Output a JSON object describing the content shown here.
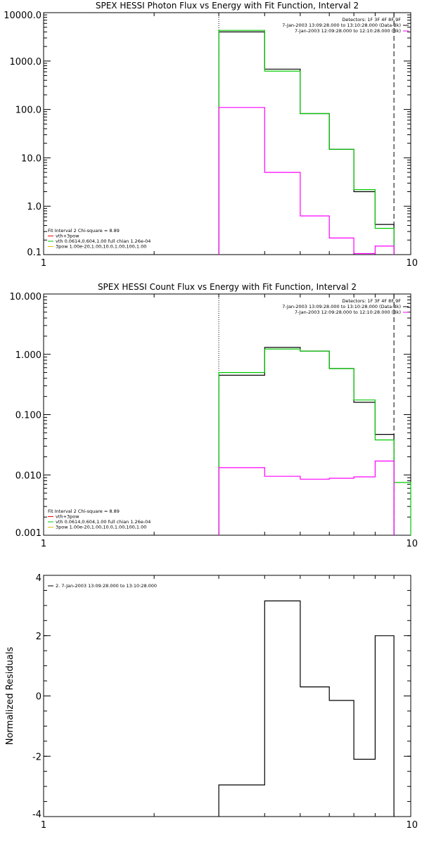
{
  "chart_data": [
    {
      "type": "line",
      "title": "SPEX HESSI Photon Flux vs Energy with Fit Function, Interval 2",
      "xscale": "log",
      "yscale": "log",
      "xlim": [
        1,
        10
      ],
      "ylim": [
        0.1,
        10000
      ],
      "xticks": [
        {
          "v": 1,
          "label": "1"
        },
        {
          "v": 10,
          "label": "10"
        }
      ],
      "yticks": [
        {
          "v": 0.1,
          "label": "0.1"
        },
        {
          "v": 1,
          "label": "1.0"
        },
        {
          "v": 10,
          "label": "10.0"
        },
        {
          "v": 100,
          "label": "100.0"
        },
        {
          "v": 1000,
          "label": "1000.0"
        },
        {
          "v": 10000,
          "label": "10000.0"
        }
      ],
      "legend_top": [
        "Detectors: 1F 3F 4F 8F 9F",
        "7-Jan-2003 13:09:28.000 to 13:10:28.000 (Data-Bk)",
        "7-Jan-2003 12:09:28.000 to 12:10:28.000 (Bk)"
      ],
      "legend_bottom": [
        "Fit Interval 2   Chi-square = 8.89",
        "vth+3pow",
        "vth 0.0614,0.604,1.00  full chian 1.26e-04",
        "3pow 1.00e-20,1.00,10.0,1.00,100,1.00"
      ],
      "vlines": [
        {
          "x": 3,
          "style": "dotted"
        },
        {
          "x": 9,
          "style": "dashed"
        }
      ],
      "series": [
        {
          "color": "#000000",
          "edges": [
            3,
            4,
            5,
            6,
            7,
            8,
            9
          ],
          "values": [
            4000,
            680,
            82,
            15,
            2.0,
            0.42
          ]
        },
        {
          "color": "#00c800",
          "edges": [
            3,
            4,
            5,
            6,
            7,
            8,
            9
          ],
          "values": [
            4300,
            620,
            82,
            15,
            2.2,
            0.35
          ]
        },
        {
          "color": "#ff00ff",
          "edges": [
            3,
            4,
            5,
            6,
            7,
            8,
            9
          ],
          "values": [
            110,
            5.0,
            0.63,
            0.22,
            0.105,
            0.15
          ]
        }
      ]
    },
    {
      "type": "line",
      "title": "SPEX HESSI Count Flux vs Energy with Fit Function, Interval 2",
      "xscale": "log",
      "yscale": "log",
      "xlim": [
        1,
        10
      ],
      "ylim": [
        0.001,
        10
      ],
      "xticks": [
        {
          "v": 1,
          "label": "1"
        },
        {
          "v": 10,
          "label": "10"
        }
      ],
      "yticks": [
        {
          "v": 0.001,
          "label": "0.001"
        },
        {
          "v": 0.01,
          "label": "0.010"
        },
        {
          "v": 0.1,
          "label": "0.100"
        },
        {
          "v": 1,
          "label": "1.000"
        },
        {
          "v": 10,
          "label": "10.000"
        }
      ],
      "legend_top": [
        "Detectors: 1F 3F 4F 8F 9F",
        "7-Jan-2003 13:09:28.000 to 13:10:28.000 (Data-Bk)",
        "7-Jan-2003 12:09:28.000 to 12:10:28.000 (Bk)"
      ],
      "legend_bottom": [
        "Fit Interval 2   Chi-square = 8.89",
        "vth+3pow",
        "vth 0.0614,0.604,1.00  full chian 1.26e-04",
        "3pow 1.00e-20,1.00,10.0,1.00,100,1.00"
      ],
      "vlines": [
        {
          "x": 3,
          "style": "dotted"
        },
        {
          "x": 9,
          "style": "dashed"
        }
      ],
      "series": [
        {
          "color": "#000000",
          "edges": [
            3,
            4,
            5,
            6,
            7,
            8,
            9
          ],
          "values": [
            0.45,
            1.3,
            1.13,
            0.58,
            0.16,
            0.047
          ]
        },
        {
          "color": "#00c800",
          "edges": [
            3,
            4,
            5,
            6,
            7,
            8,
            9,
            10
          ],
          "values": [
            0.5,
            1.22,
            1.13,
            0.58,
            0.175,
            0.038,
            0.0075
          ]
        },
        {
          "color": "#ff00ff",
          "edges": [
            3,
            4,
            5,
            6,
            7,
            8,
            9
          ],
          "values": [
            0.0132,
            0.0095,
            0.0085,
            0.0088,
            0.0093,
            0.017
          ]
        }
      ]
    },
    {
      "type": "line",
      "title": "",
      "xscale": "log",
      "yscale": "linear",
      "xlim": [
        1,
        10
      ],
      "ylim": [
        -4,
        4
      ],
      "ylabel": "Normalized Residuals",
      "xticks": [
        {
          "v": 1,
          "label": "1"
        },
        {
          "v": 10,
          "label": "10"
        }
      ],
      "yticks": [
        {
          "v": -4,
          "label": "-4"
        },
        {
          "v": -2,
          "label": "-2"
        },
        {
          "v": 0,
          "label": "0"
        },
        {
          "v": 2,
          "label": "2"
        },
        {
          "v": 4,
          "label": "4"
        }
      ],
      "legend_top_left": "2.  7-Jan-2003 13:09:28.000 to 13:10:28.000",
      "series": [
        {
          "color": "#000000",
          "edges": [
            3,
            4,
            5,
            6,
            7,
            8,
            9
          ],
          "values": [
            -2.95,
            3.15,
            0.3,
            -0.15,
            -2.1,
            2.0
          ]
        }
      ]
    }
  ]
}
